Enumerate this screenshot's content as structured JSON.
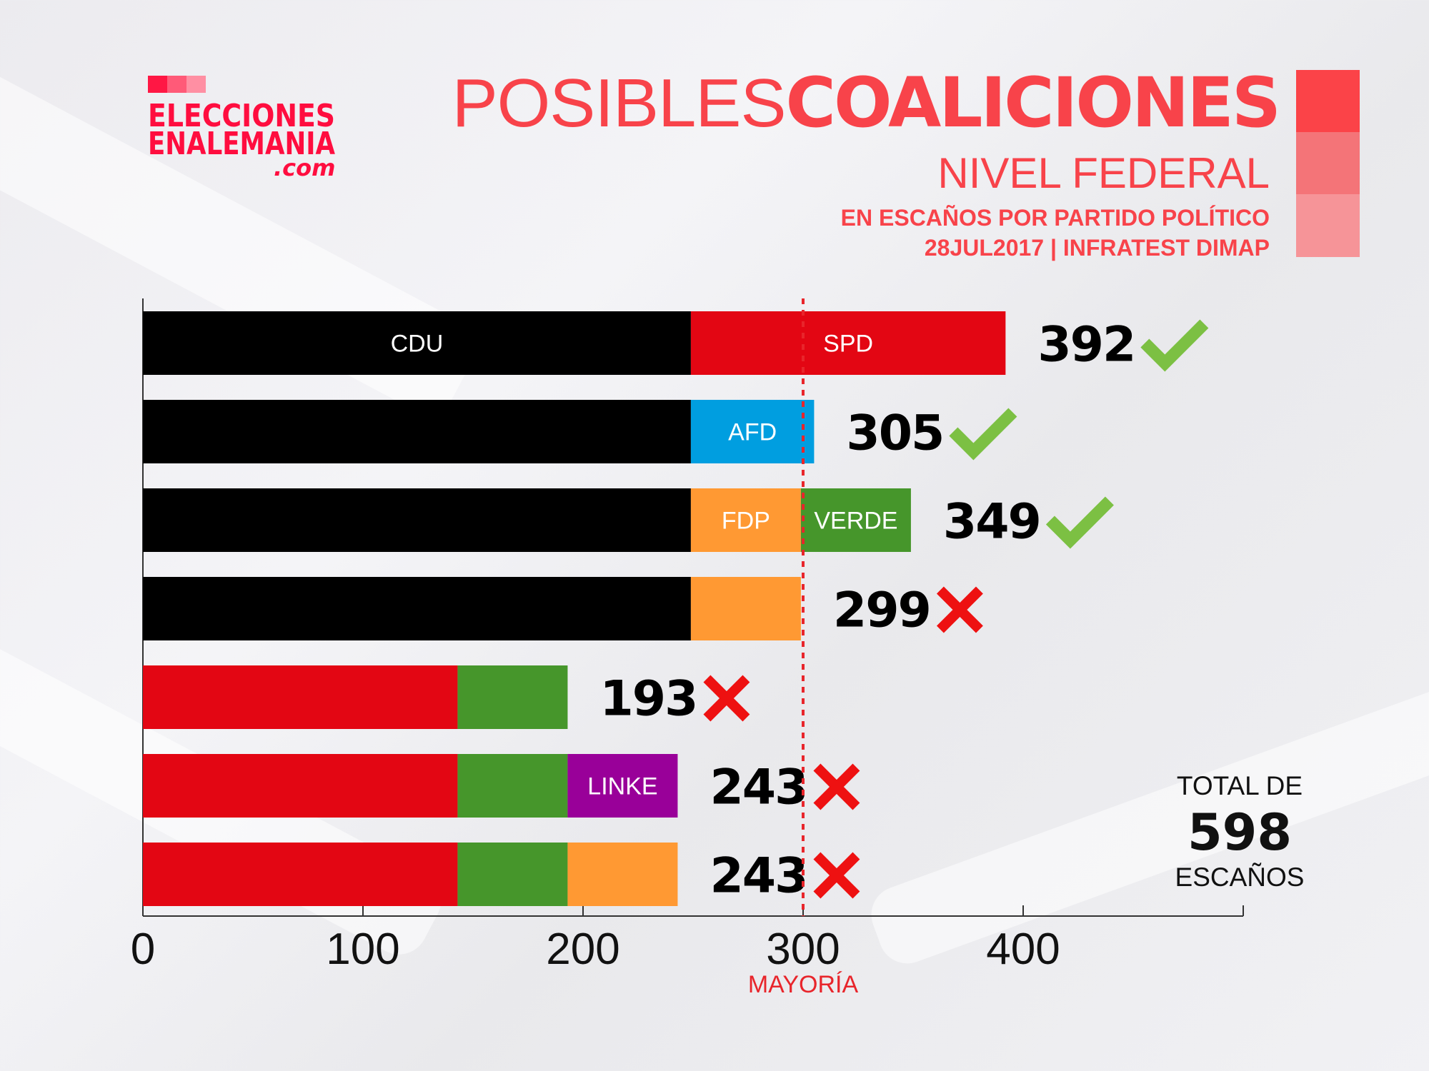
{
  "logo": {
    "line1": "ELECCIONES",
    "line2": "ENALEMANIA",
    "line3": ".com",
    "colors": [
      "#ff1744",
      "#ff5a78",
      "#ff8fa3"
    ]
  },
  "header": {
    "title_light": "POSIBLES",
    "title_bold": "COALICIONES",
    "subtitle": "NIVEL FEDERAL",
    "description": "EN ESCAÑOS POR PARTIDO POLÍTICO",
    "source": "28JUL2017 | INFRATEST DIMAP",
    "accent": "#f8434a",
    "square_colors": [
      "#fb4348",
      "#f47478",
      "#f69498"
    ]
  },
  "total": {
    "label_top": "TOTAL DE",
    "value": "598",
    "label_bottom": "ESCAÑOS"
  },
  "chart_data": {
    "type": "bar",
    "orientation": "horizontal",
    "stacked": true,
    "xlim": [
      0,
      500
    ],
    "xticks": [
      0,
      100,
      200,
      300,
      400
    ],
    "xtick_labels": [
      "0",
      "100",
      "200",
      "300",
      "400"
    ],
    "majority": {
      "value": 300,
      "label": "MAYORÍA",
      "color": "#e8252b"
    },
    "party_colors": {
      "CDU": "#000000",
      "SPD": "#e30613",
      "AFD": "#009ee0",
      "FDP": "#ff9933",
      "VERDE": "#46962b",
      "LINKE": "#990099"
    },
    "mark_colors": {
      "check": "#7cc043",
      "cross": "#ee1111"
    },
    "rows": [
      {
        "total": "392",
        "mark": "check",
        "segments": [
          {
            "party": "CDU",
            "seats": 249,
            "label": "CDU"
          },
          {
            "party": "SPD",
            "seats": 143,
            "label": "SPD"
          }
        ]
      },
      {
        "total": "305",
        "mark": "check",
        "segments": [
          {
            "party": "CDU",
            "seats": 249,
            "label": ""
          },
          {
            "party": "AFD",
            "seats": 56,
            "label": "AFD"
          }
        ]
      },
      {
        "total": "349",
        "mark": "check",
        "segments": [
          {
            "party": "CDU",
            "seats": 249,
            "label": ""
          },
          {
            "party": "FDP",
            "seats": 50,
            "label": "FDP"
          },
          {
            "party": "VERDE",
            "seats": 50,
            "label": "VERDE"
          }
        ]
      },
      {
        "total": "299",
        "mark": "cross",
        "segments": [
          {
            "party": "CDU",
            "seats": 249,
            "label": ""
          },
          {
            "party": "FDP",
            "seats": 50,
            "label": ""
          }
        ]
      },
      {
        "total": "193",
        "mark": "cross",
        "segments": [
          {
            "party": "SPD",
            "seats": 143,
            "label": ""
          },
          {
            "party": "VERDE",
            "seats": 50,
            "label": ""
          }
        ]
      },
      {
        "total": "243",
        "mark": "cross",
        "segments": [
          {
            "party": "SPD",
            "seats": 143,
            "label": ""
          },
          {
            "party": "VERDE",
            "seats": 50,
            "label": ""
          },
          {
            "party": "LINKE",
            "seats": 50,
            "label": "LINKE"
          }
        ]
      },
      {
        "total": "243",
        "mark": "cross",
        "segments": [
          {
            "party": "SPD",
            "seats": 143,
            "label": ""
          },
          {
            "party": "VERDE",
            "seats": 50,
            "label": ""
          },
          {
            "party": "FDP",
            "seats": 50,
            "label": ""
          }
        ]
      }
    ]
  }
}
